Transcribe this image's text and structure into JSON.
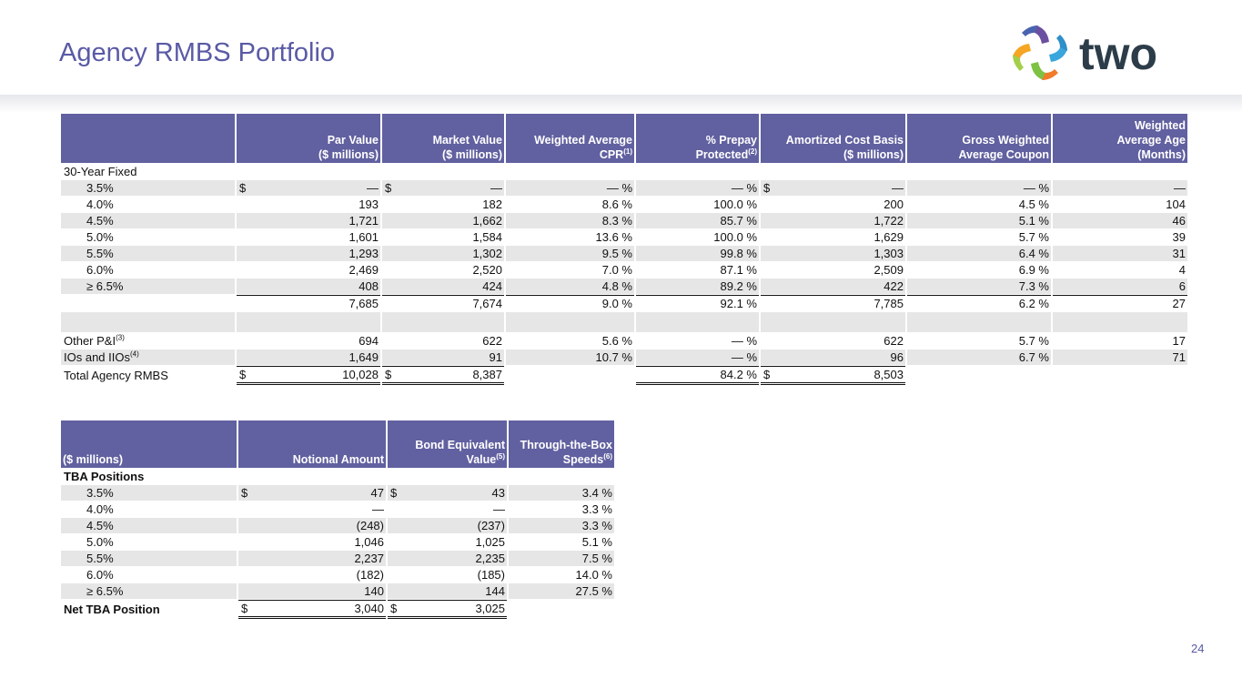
{
  "header": {
    "title": "Agency RMBS Portfolio",
    "logo": "two"
  },
  "table1": {
    "header": [
      null,
      {
        "lines": [
          "Par Value",
          "($ millions)"
        ]
      },
      {
        "lines": [
          "Market Value",
          "($ millions)"
        ]
      },
      {
        "lines": [
          "Weighted Average",
          "CPR"
        ],
        "note": "(1)"
      },
      {
        "lines": [
          "% Prepay",
          "Protected"
        ],
        "note": "(2)"
      },
      {
        "lines": [
          "Amortized Cost Basis",
          "($ millions)"
        ]
      },
      {
        "lines": [
          "Gross Weighted",
          "Average Coupon"
        ]
      },
      {
        "lines": [
          "Weighted",
          "Average Age",
          "(Months)"
        ]
      }
    ],
    "rows": [
      {
        "label": "30-Year Fixed"
      },
      {
        "label": "3.5%",
        "cells": [
          {
            "cur": "$",
            "v": "—"
          },
          {
            "cur": "$",
            "v": "—"
          },
          "— %",
          "— %",
          {
            "cur": "$",
            "v": "—"
          },
          "— %",
          "—"
        ]
      },
      {
        "label": "4.0%",
        "cells": [
          "193",
          "182",
          "8.6 %",
          "100.0 %",
          "200",
          "4.5 %",
          "104"
        ]
      },
      {
        "label": "4.5%",
        "cells": [
          "1,721",
          "1,662",
          "8.3 %",
          "85.7 %",
          "1,722",
          "5.1 %",
          "46"
        ]
      },
      {
        "label": "5.0%",
        "cells": [
          "1,601",
          "1,584",
          "13.6 %",
          "100.0 %",
          "1,629",
          "5.7 %",
          "39"
        ]
      },
      {
        "label": "5.5%",
        "cells": [
          "1,293",
          "1,302",
          "9.5 %",
          "99.8 %",
          "1,303",
          "6.4 %",
          "31"
        ]
      },
      {
        "label": "6.0%",
        "cells": [
          "2,469",
          "2,520",
          "7.0 %",
          "87.1 %",
          "2,509",
          "6.9 %",
          "4"
        ]
      },
      {
        "label": "≥ 6.5%",
        "cells": [
          "408",
          "424",
          "4.8 %",
          "89.2 %",
          "422",
          "7.3 %",
          "6"
        ]
      },
      {
        "cells": [
          "7,685",
          "7,674",
          "9.0 %",
          "92.1 %",
          "7,785",
          "6.2 %",
          "27"
        ]
      },
      null,
      {
        "label": {
          "text": "Other P&I",
          "note": "(3)"
        },
        "cells": [
          "694",
          "622",
          "5.6 %",
          "— %",
          "622",
          "5.7 %",
          "17"
        ]
      },
      {
        "label": {
          "text": "IOs and IIOs",
          "note": "(4)"
        },
        "cells": [
          "1,649",
          "91",
          "10.7 %",
          "— %",
          "96",
          "6.7 %",
          "71"
        ]
      },
      {
        "label": "Total Agency RMBS",
        "cells": [
          {
            "cur": "$",
            "v": "10,028"
          },
          {
            "cur": "$",
            "v": "8,387"
          },
          null,
          "84.2 %",
          {
            "cur": "$",
            "v": "8,503"
          },
          null,
          null
        ]
      }
    ]
  },
  "table2": {
    "header": [
      {
        "lines": [
          "($ millions)"
        ]
      },
      {
        "lines": [
          "Notional Amount"
        ]
      },
      {
        "lines": [
          "Bond Equivalent",
          "Value"
        ],
        "note": "(5)"
      },
      {
        "lines": [
          "Through-the-Box",
          "Speeds"
        ],
        "note": "(6)"
      }
    ],
    "rows": [
      {
        "label": "TBA Positions"
      },
      {
        "label": "3.5%",
        "cells": [
          {
            "cur": "$",
            "v": "47"
          },
          {
            "cur": "$",
            "v": "43"
          },
          "3.4 %"
        ]
      },
      {
        "label": "4.0%",
        "cells": [
          "—",
          "—",
          "3.3 %"
        ]
      },
      {
        "label": "4.5%",
        "cells": [
          "(248)",
          "(237)",
          "3.3 %"
        ]
      },
      {
        "label": "5.0%",
        "cells": [
          "1,046",
          "1,025",
          "5.1 %"
        ]
      },
      {
        "label": "5.5%",
        "cells": [
          "2,237",
          "2,235",
          "7.5 %"
        ]
      },
      {
        "label": "6.0%",
        "cells": [
          "(182)",
          "(185)",
          "14.0 %"
        ]
      },
      {
        "label": "≥ 6.5%",
        "cells": [
          "140",
          "144",
          "27.5 %"
        ]
      },
      {
        "label": "Net TBA Position",
        "cells": [
          {
            "cur": "$",
            "v": "3,040"
          },
          {
            "cur": "$",
            "v": "3,025"
          },
          null
        ]
      }
    ]
  },
  "footer": {
    "page": "24"
  }
}
